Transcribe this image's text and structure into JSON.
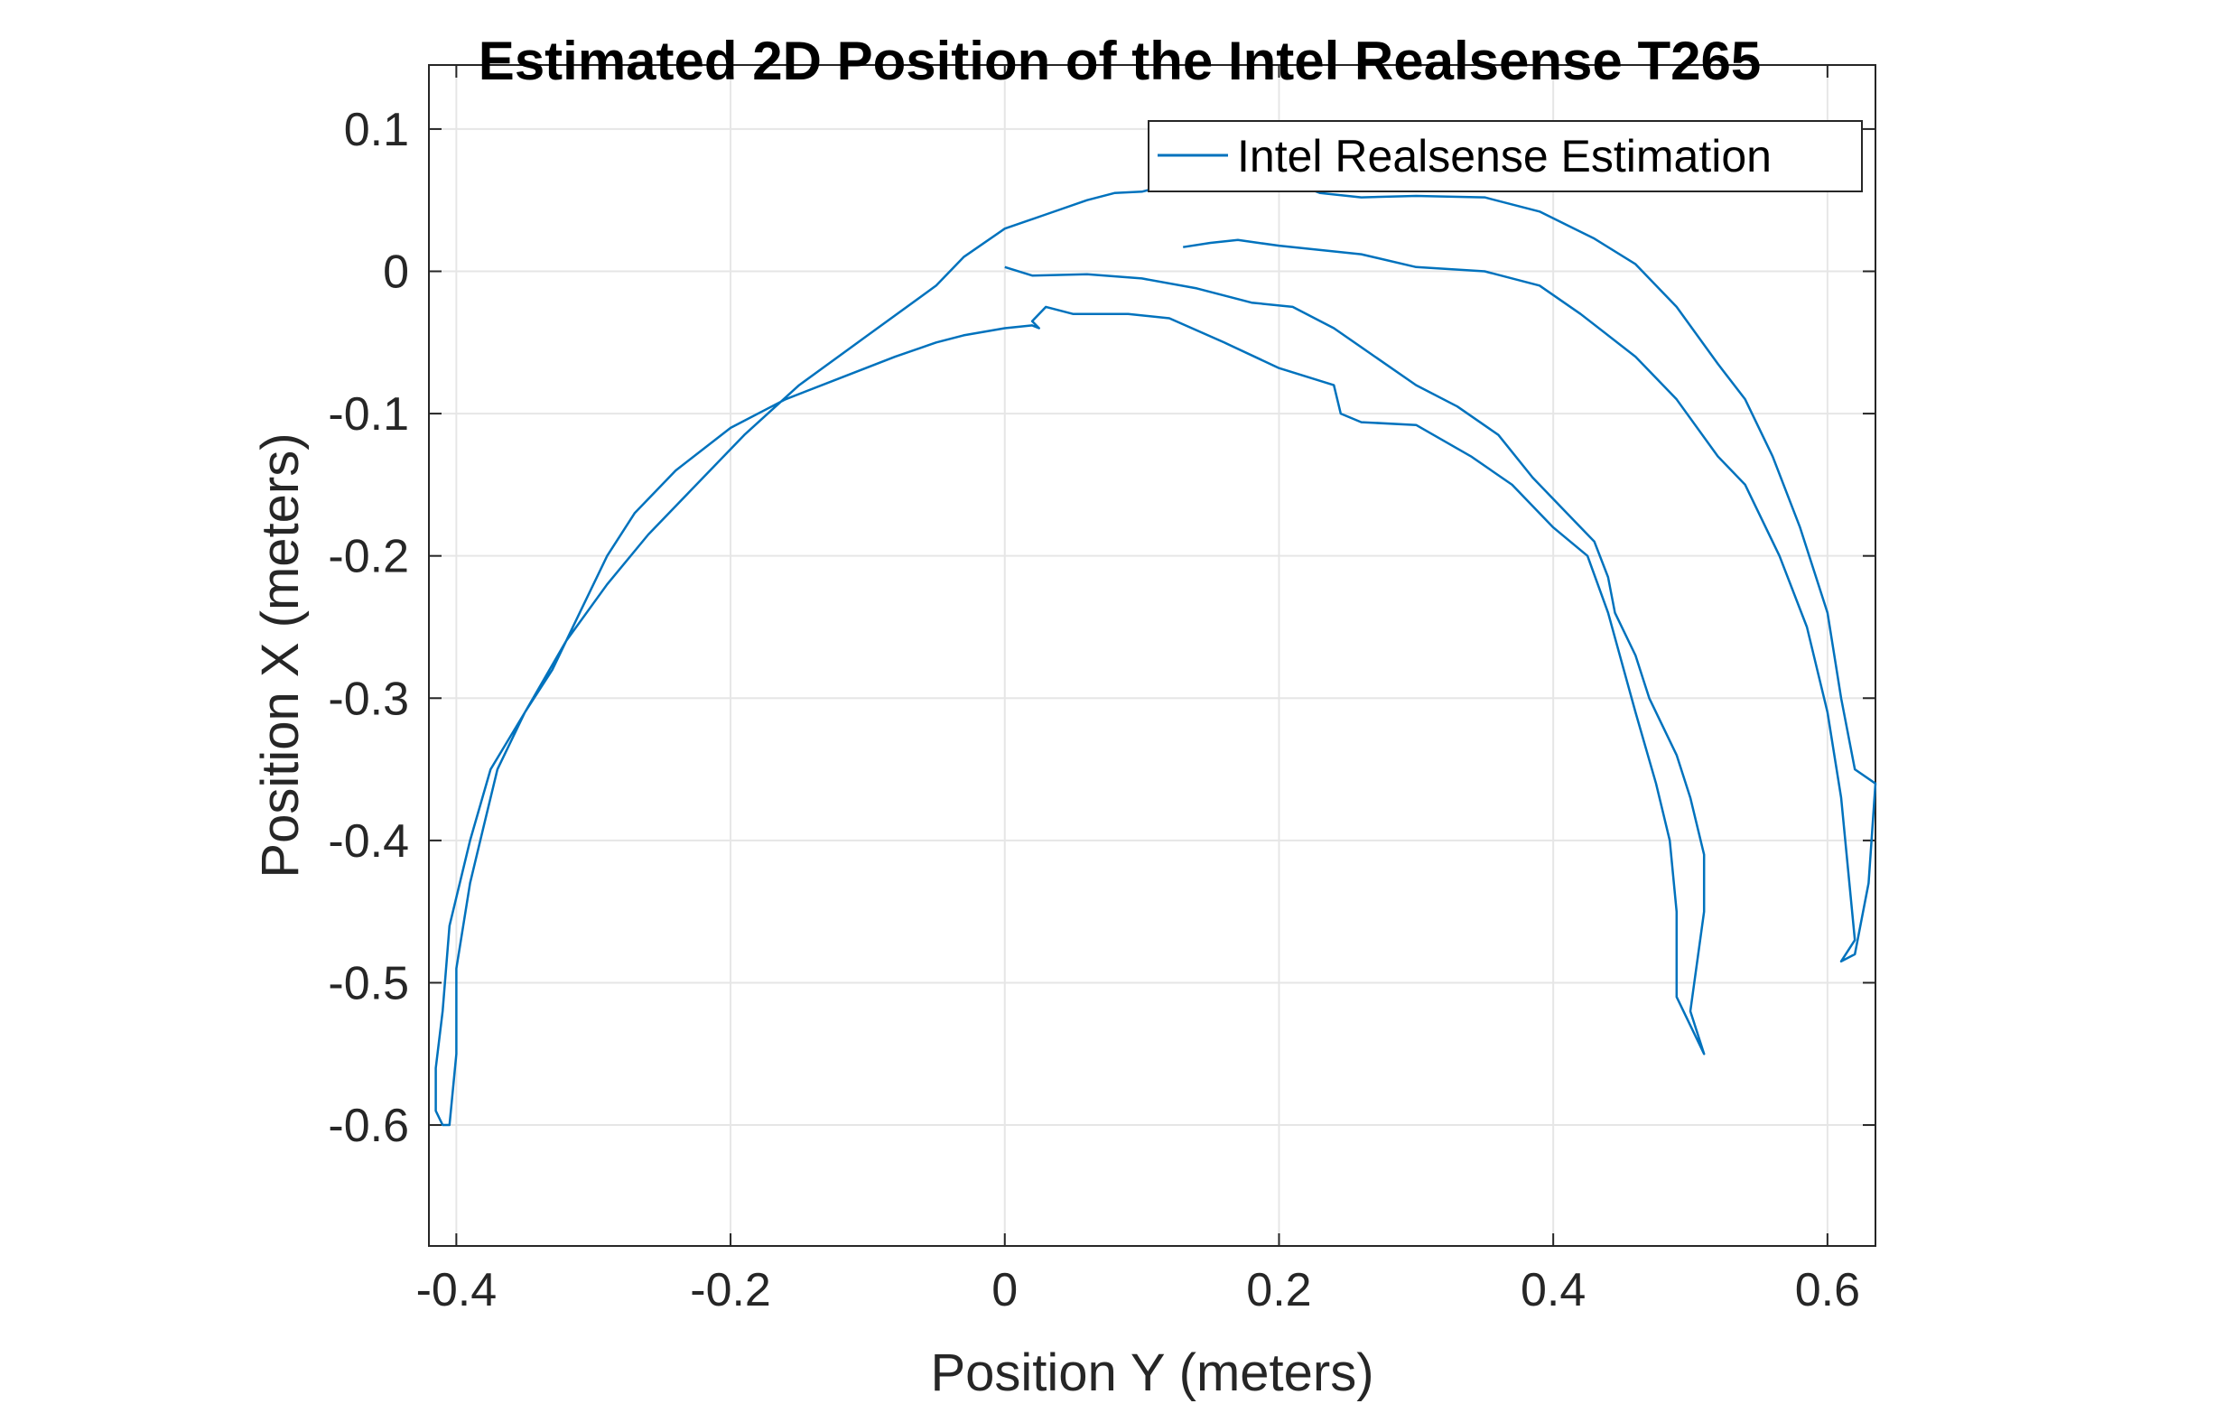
{
  "chart_data": {
    "type": "line",
    "title": "Estimated 2D Position of the Intel Realsense T265",
    "xlabel": "Position Y (meters)",
    "ylabel": "Position X (meters)",
    "xlim": [
      -0.42,
      0.635
    ],
    "ylim": [
      -0.685,
      0.145
    ],
    "xticks": [
      -0.4,
      -0.2,
      0,
      0.2,
      0.4,
      0.6
    ],
    "xtick_labels": [
      "-0.4",
      "-0.2",
      "0",
      "0.2",
      "0.4",
      "0.6"
    ],
    "yticks": [
      0.1,
      0,
      -0.1,
      -0.2,
      -0.3,
      -0.4,
      -0.5,
      -0.6
    ],
    "ytick_labels": [
      "0.1",
      "0",
      "-0.1",
      "-0.2",
      "-0.3",
      "-0.4",
      "-0.5",
      "-0.6"
    ],
    "grid": true,
    "legend_position": "top-right",
    "series": [
      {
        "name": "Intel Realsense Estimation",
        "color": "#0072BD",
        "points": [
          [
            0.0,
            0.003
          ],
          [
            0.02,
            -0.003
          ],
          [
            0.06,
            -0.002
          ],
          [
            0.1,
            -0.005
          ],
          [
            0.14,
            -0.012
          ],
          [
            0.18,
            -0.022
          ],
          [
            0.21,
            -0.025
          ],
          [
            0.24,
            -0.04
          ],
          [
            0.27,
            -0.06
          ],
          [
            0.3,
            -0.08
          ],
          [
            0.33,
            -0.095
          ],
          [
            0.36,
            -0.115
          ],
          [
            0.385,
            -0.145
          ],
          [
            0.41,
            -0.17
          ],
          [
            0.43,
            -0.19
          ],
          [
            0.44,
            -0.215
          ],
          [
            0.445,
            -0.24
          ],
          [
            0.46,
            -0.27
          ],
          [
            0.47,
            -0.3
          ],
          [
            0.49,
            -0.34
          ],
          [
            0.5,
            -0.37
          ],
          [
            0.51,
            -0.41
          ],
          [
            0.51,
            -0.45
          ],
          [
            0.5,
            -0.52
          ],
          [
            0.51,
            -0.55
          ],
          [
            0.49,
            -0.51
          ],
          [
            0.49,
            -0.45
          ],
          [
            0.485,
            -0.4
          ],
          [
            0.475,
            -0.36
          ],
          [
            0.46,
            -0.31
          ],
          [
            0.44,
            -0.24
          ],
          [
            0.425,
            -0.2
          ],
          [
            0.4,
            -0.18
          ],
          [
            0.37,
            -0.15
          ],
          [
            0.34,
            -0.13
          ],
          [
            0.3,
            -0.108
          ],
          [
            0.26,
            -0.106
          ],
          [
            0.245,
            -0.1
          ],
          [
            0.24,
            -0.08
          ],
          [
            0.2,
            -0.068
          ],
          [
            0.16,
            -0.05
          ],
          [
            0.12,
            -0.033
          ],
          [
            0.09,
            -0.03
          ],
          [
            0.05,
            -0.03
          ],
          [
            0.03,
            -0.025
          ],
          [
            0.02,
            -0.035
          ],
          [
            0.025,
            -0.04
          ],
          [
            0.02,
            -0.038
          ],
          [
            0.0,
            -0.04
          ],
          [
            -0.03,
            -0.045
          ],
          [
            -0.05,
            -0.05
          ],
          [
            -0.08,
            -0.06
          ],
          [
            -0.12,
            -0.075
          ],
          [
            -0.16,
            -0.09
          ],
          [
            -0.2,
            -0.11
          ],
          [
            -0.24,
            -0.14
          ],
          [
            -0.27,
            -0.17
          ],
          [
            -0.29,
            -0.2
          ],
          [
            -0.31,
            -0.24
          ],
          [
            -0.33,
            -0.28
          ],
          [
            -0.35,
            -0.31
          ],
          [
            -0.37,
            -0.35
          ],
          [
            -0.38,
            -0.39
          ],
          [
            -0.39,
            -0.43
          ],
          [
            -0.4,
            -0.49
          ],
          [
            -0.4,
            -0.55
          ],
          [
            -0.405,
            -0.6
          ],
          [
            -0.41,
            -0.6
          ],
          [
            -0.415,
            -0.59
          ],
          [
            -0.415,
            -0.56
          ],
          [
            -0.41,
            -0.52
          ],
          [
            -0.405,
            -0.46
          ],
          [
            -0.39,
            -0.4
          ],
          [
            -0.375,
            -0.35
          ],
          [
            -0.35,
            -0.31
          ],
          [
            -0.32,
            -0.26
          ],
          [
            -0.29,
            -0.22
          ],
          [
            -0.26,
            -0.185
          ],
          [
            -0.23,
            -0.155
          ],
          [
            -0.19,
            -0.115
          ],
          [
            -0.15,
            -0.08
          ],
          [
            -0.1,
            -0.045
          ],
          [
            -0.05,
            -0.01
          ],
          [
            -0.03,
            0.01
          ],
          [
            0.0,
            0.03
          ],
          [
            0.03,
            0.04
          ],
          [
            0.06,
            0.05
          ],
          [
            0.08,
            0.055
          ],
          [
            0.1,
            0.056
          ],
          [
            0.125,
            0.062
          ],
          [
            0.15,
            0.058
          ],
          [
            0.18,
            0.062
          ],
          [
            0.2,
            0.066
          ],
          [
            0.23,
            0.055
          ],
          [
            0.26,
            0.052
          ],
          [
            0.3,
            0.053
          ],
          [
            0.35,
            0.052
          ],
          [
            0.39,
            0.042
          ],
          [
            0.43,
            0.023
          ],
          [
            0.46,
            0.005
          ],
          [
            0.49,
            -0.025
          ],
          [
            0.52,
            -0.065
          ],
          [
            0.54,
            -0.09
          ],
          [
            0.56,
            -0.13
          ],
          [
            0.58,
            -0.18
          ],
          [
            0.6,
            -0.24
          ],
          [
            0.61,
            -0.3
          ],
          [
            0.62,
            -0.35
          ],
          [
            0.635,
            -0.36
          ],
          [
            0.63,
            -0.43
          ],
          [
            0.62,
            -0.48
          ],
          [
            0.61,
            -0.485
          ],
          [
            0.62,
            -0.47
          ],
          [
            0.615,
            -0.42
          ],
          [
            0.61,
            -0.37
          ],
          [
            0.6,
            -0.31
          ],
          [
            0.585,
            -0.25
          ],
          [
            0.565,
            -0.2
          ],
          [
            0.54,
            -0.15
          ],
          [
            0.52,
            -0.13
          ],
          [
            0.49,
            -0.09
          ],
          [
            0.46,
            -0.06
          ],
          [
            0.42,
            -0.03
          ],
          [
            0.39,
            -0.01
          ],
          [
            0.35,
            0.0
          ],
          [
            0.3,
            0.003
          ],
          [
            0.26,
            0.012
          ],
          [
            0.23,
            0.015
          ],
          [
            0.2,
            0.018
          ],
          [
            0.185,
            0.02
          ],
          [
            0.17,
            0.022
          ],
          [
            0.15,
            0.02
          ],
          [
            0.13,
            0.017
          ]
        ]
      }
    ]
  }
}
